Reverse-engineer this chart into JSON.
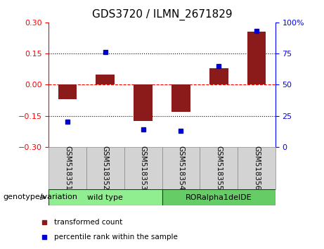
{
  "title": "GDS3720 / ILMN_2671829",
  "samples": [
    "GSM518351",
    "GSM518352",
    "GSM518353",
    "GSM518354",
    "GSM518355",
    "GSM518356"
  ],
  "transformed_count": [
    -0.07,
    0.05,
    -0.175,
    -0.13,
    0.08,
    0.255
  ],
  "percentile_rank": [
    20,
    76,
    14,
    13,
    65,
    93
  ],
  "bar_color": "#8B1A1A",
  "dot_color": "#0000CD",
  "ylim_left": [
    -0.3,
    0.3
  ],
  "ylim_right": [
    0,
    100
  ],
  "yticks_left": [
    -0.3,
    -0.15,
    0,
    0.15,
    0.3
  ],
  "yticks_right": [
    0,
    25,
    50,
    75,
    100
  ],
  "yticklabels_right": [
    "0",
    "25",
    "50",
    "75",
    "100%"
  ],
  "hlines": [
    0.15,
    0,
    -0.15
  ],
  "hline_styles": [
    "dotted",
    "dashed",
    "dotted"
  ],
  "hline_colors": [
    "black",
    "red",
    "black"
  ],
  "groups": [
    {
      "label": "wild type",
      "samples": [
        0,
        1,
        2
      ],
      "color": "#90EE90"
    },
    {
      "label": "RORalpha1delDE",
      "samples": [
        3,
        4,
        5
      ],
      "color": "#66CC66"
    }
  ],
  "group_row_label": "genotype/variation",
  "legend_items": [
    {
      "label": "transformed count",
      "color": "#8B1A1A"
    },
    {
      "label": "percentile rank within the sample",
      "color": "#0000CD"
    }
  ],
  "title_fontsize": 11,
  "tick_label_fontsize": 8,
  "bar_width": 0.5
}
